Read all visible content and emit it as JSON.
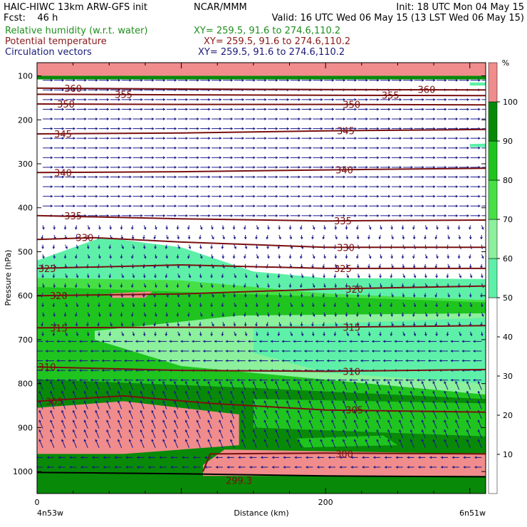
{
  "header": {
    "line1_left": "HAIC-HIWC 13km ARW-GFS init",
    "line1_mid": "NCAR/MMM",
    "line1_right": "Init: 18 UTC Mon 04 May 15",
    "line2_left": "Fcst:    46 h",
    "line2_right": "Valid: 16 UTC Wed 06 May 15 (13 LST Wed 06 May 15)",
    "fields": [
      {
        "name": "Relative humidity (w.r.t. water)",
        "xy": "XY= 259.5, 91.6 to 274.6,110.2",
        "color": "#1e8f1e"
      },
      {
        "name": "Potential temperature",
        "xy": "XY= 259.5, 91.6 to 274.6,110.2",
        "color": "#8b1a1a"
      },
      {
        "name": "Circulation vectors",
        "xy": "XY= 259.5, 91.6 to 274.6,110.2",
        "color": "#1a1a7a"
      }
    ]
  },
  "colors": {
    "rh_fill": [
      "#ffffff",
      "#5ef0a8",
      "#8cf09c",
      "#46e046",
      "#1fc41f",
      "#088a08",
      "#f08c8c"
    ],
    "theta": "#7a1010",
    "vectors": "#1a1a8a",
    "extreme_band": "#7a0a0a"
  },
  "chart_data": {
    "type": "cross-section",
    "ylabel": "Pressure (hPa)",
    "xlabel": "Distance (km)",
    "y_ticks": [
      100,
      200,
      300,
      400,
      500,
      600,
      700,
      800,
      900,
      1000
    ],
    "x_ticks": [
      0,
      200
    ],
    "x_range": [
      0,
      311
    ],
    "y_range": [
      1050,
      70
    ],
    "endpoints": {
      "left": "4n53w",
      "right": "6n51w"
    },
    "colorbar": {
      "unit": "%",
      "ticks": [
        10,
        20,
        30,
        40,
        50,
        60,
        70,
        80,
        90,
        100
      ],
      "levels": [
        0,
        50,
        60,
        70,
        80,
        90,
        100,
        110
      ],
      "colors": [
        "#ffffff",
        "#5ef0a8",
        "#8cf09c",
        "#46e046",
        "#1fc41f",
        "#088a08",
        "#f08c8c"
      ]
    },
    "theta_contours": [
      {
        "value": 360,
        "label": "360",
        "points": [
          [
            0,
            128
          ],
          [
            100,
            130
          ],
          [
            200,
            131
          ],
          [
            311,
            132
          ]
        ],
        "labels_at": [
          [
            25,
            128
          ],
          [
            270,
            131
          ]
        ]
      },
      {
        "value": 355,
        "label": "355",
        "points": [
          [
            0,
            142
          ],
          [
            100,
            143
          ],
          [
            200,
            144
          ],
          [
            311,
            145
          ]
        ],
        "labels_at": [
          [
            60,
            142
          ],
          [
            245,
            144
          ]
        ]
      },
      {
        "value": 350,
        "label": "350",
        "points": [
          [
            0,
            164
          ],
          [
            100,
            165
          ],
          [
            200,
            165
          ],
          [
            311,
            166
          ]
        ],
        "labels_at": [
          [
            20,
            164
          ],
          [
            218,
            165
          ]
        ]
      },
      {
        "value": 345,
        "label": "345",
        "points": [
          [
            0,
            232
          ],
          [
            100,
            230
          ],
          [
            200,
            225
          ],
          [
            311,
            222
          ]
        ],
        "labels_at": [
          [
            18,
            232
          ],
          [
            214,
            225
          ]
        ]
      },
      {
        "value": 340,
        "label": "340",
        "points": [
          [
            0,
            320
          ],
          [
            100,
            318
          ],
          [
            200,
            314
          ],
          [
            311,
            310
          ]
        ],
        "labels_at": [
          [
            18,
            320
          ],
          [
            213,
            314
          ]
        ]
      },
      {
        "value": 335,
        "label": "335",
        "points": [
          [
            0,
            418
          ],
          [
            100,
            425
          ],
          [
            200,
            430
          ],
          [
            311,
            428
          ]
        ],
        "labels_at": [
          [
            25,
            418
          ],
          [
            212,
            430
          ]
        ]
      },
      {
        "value": 330,
        "label": "330",
        "points": [
          [
            0,
            472
          ],
          [
            40,
            468
          ],
          [
            100,
            478
          ],
          [
            200,
            490
          ],
          [
            311,
            490
          ]
        ],
        "labels_at": [
          [
            33,
            468
          ],
          [
            214,
            490
          ]
        ]
      },
      {
        "value": 325,
        "label": "325",
        "points": [
          [
            0,
            538
          ],
          [
            100,
            530
          ],
          [
            200,
            538
          ],
          [
            311,
            538
          ]
        ],
        "labels_at": [
          [
            7,
            538
          ],
          [
            212,
            538
          ]
        ]
      },
      {
        "value": 320,
        "label": "320",
        "points": [
          [
            0,
            600
          ],
          [
            100,
            596
          ],
          [
            200,
            585
          ],
          [
            311,
            578
          ]
        ],
        "labels_at": [
          [
            15,
            600
          ],
          [
            220,
            585
          ]
        ]
      },
      {
        "value": 315,
        "label": "315",
        "points": [
          [
            0,
            673
          ],
          [
            100,
            672
          ],
          [
            200,
            672
          ],
          [
            311,
            668
          ]
        ],
        "labels_at": [
          [
            15,
            673
          ],
          [
            218,
            672
          ]
        ]
      },
      {
        "value": 310,
        "label": "310",
        "points": [
          [
            0,
            762
          ],
          [
            100,
            770
          ],
          [
            200,
            772
          ],
          [
            311,
            768
          ]
        ],
        "labels_at": [
          [
            7,
            762
          ],
          [
            218,
            772
          ]
        ]
      },
      {
        "value": 305,
        "label": "305",
        "points": [
          [
            0,
            840
          ],
          [
            60,
            828
          ],
          [
            120,
            845
          ],
          [
            200,
            860
          ],
          [
            311,
            865
          ]
        ],
        "labels_at": [
          [
            12,
            840
          ],
          [
            220,
            860
          ]
        ]
      },
      {
        "value": 300,
        "label": "300",
        "points": [
          [
            115,
            1000
          ],
          [
            120,
            960
          ],
          [
            200,
            958
          ],
          [
            311,
            960
          ]
        ],
        "labels_at": [
          [
            213,
            960
          ]
        ]
      }
    ],
    "theta_extra_labels": [
      {
        "label": "299.3",
        "at": [
          140,
          1020
        ]
      }
    ],
    "rh_regions": [
      {
        "level": 50,
        "points": [
          [
            0,
            520
          ],
          [
            45,
            467
          ],
          [
            100,
            490
          ],
          [
            150,
            545
          ],
          [
            200,
            560
          ],
          [
            311,
            562
          ],
          [
            311,
            1050
          ],
          [
            0,
            1050
          ]
        ]
      },
      {
        "level": 70,
        "points": [
          [
            0,
            560
          ],
          [
            100,
            565
          ],
          [
            200,
            595
          ],
          [
            311,
            610
          ],
          [
            311,
            1050
          ],
          [
            0,
            1050
          ]
        ]
      },
      {
        "level": 80,
        "points": [
          [
            0,
            580
          ],
          [
            311,
            615
          ],
          [
            311,
            1050
          ],
          [
            0,
            1050
          ]
        ]
      },
      {
        "level": 60,
        "points": [
          [
            40,
            680
          ],
          [
            140,
            645
          ],
          [
            311,
            640
          ],
          [
            311,
            825
          ],
          [
            100,
            760
          ],
          [
            40,
            700
          ]
        ]
      },
      {
        "level": 50,
        "points": [
          [
            150,
            670
          ],
          [
            311,
            650
          ],
          [
            311,
            800
          ],
          [
            200,
            775
          ],
          [
            150,
            730
          ]
        ]
      },
      {
        "level": 90,
        "points": [
          [
            0,
            790
          ],
          [
            150,
            810
          ],
          [
            311,
            835
          ],
          [
            311,
            1050
          ],
          [
            0,
            1050
          ]
        ]
      },
      {
        "level": 80,
        "points": [
          [
            150,
            835
          ],
          [
            311,
            845
          ],
          [
            311,
            920
          ],
          [
            150,
            900
          ]
        ]
      },
      {
        "level": 100,
        "points": [
          [
            0,
            855
          ],
          [
            60,
            840
          ],
          [
            140,
            870
          ],
          [
            140,
            940
          ],
          [
            60,
            960
          ],
          [
            0,
            960
          ]
        ]
      },
      {
        "level": 100,
        "points": [
          [
            115,
            985
          ],
          [
            130,
            950
          ],
          [
            311,
            960
          ],
          [
            311,
            1010
          ],
          [
            115,
            1010
          ]
        ]
      },
      {
        "level": 80,
        "points": [
          [
            180,
            925
          ],
          [
            240,
            918
          ],
          [
            250,
            940
          ],
          [
            185,
            945
          ]
        ]
      },
      {
        "level": 110,
        "points": [
          [
            40,
            870
          ],
          [
            50,
            860
          ],
          [
            57,
            884
          ],
          [
            47,
            892
          ]
        ]
      },
      {
        "level": 110,
        "points": [
          [
            70,
            880
          ],
          [
            90,
            877
          ],
          [
            90,
            884
          ],
          [
            72,
            886
          ]
        ]
      },
      {
        "level": 100,
        "points": [
          [
            50,
            595
          ],
          [
            80,
            590
          ],
          [
            75,
            605
          ],
          [
            52,
            605
          ]
        ]
      },
      {
        "level": 110,
        "points": [
          [
            0,
            70
          ],
          [
            311,
            70
          ],
          [
            311,
            100
          ],
          [
            0,
            100
          ]
        ]
      },
      {
        "level": 90,
        "points": [
          [
            0,
            100
          ],
          [
            311,
            100
          ],
          [
            311,
            108
          ],
          [
            0,
            108
          ]
        ]
      },
      {
        "level": 50,
        "points": [
          [
            300,
            255
          ],
          [
            311,
            254
          ],
          [
            311,
            262
          ],
          [
            300,
            262
          ]
        ]
      },
      {
        "level": 50,
        "points": [
          [
            300,
            115
          ],
          [
            311,
            115
          ],
          [
            311,
            122
          ],
          [
            300,
            122
          ]
        ]
      }
    ],
    "ground_line": [
      [
        0,
        1002
      ],
      [
        100,
        1005
      ],
      [
        200,
        1010
      ],
      [
        311,
        1012
      ]
    ]
  }
}
